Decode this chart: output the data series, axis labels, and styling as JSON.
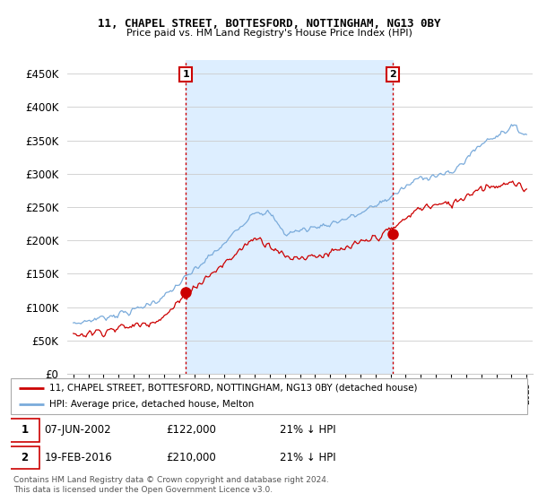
{
  "title1": "11, CHAPEL STREET, BOTTESFORD, NOTTINGHAM, NG13 0BY",
  "title2": "Price paid vs. HM Land Registry's House Price Index (HPI)",
  "legend_line1": "11, CHAPEL STREET, BOTTESFORD, NOTTINGHAM, NG13 0BY (detached house)",
  "legend_line2": "HPI: Average price, detached house, Melton",
  "annotation1": {
    "num": "1",
    "date": "07-JUN-2002",
    "price": "£122,000",
    "pct": "21% ↓ HPI"
  },
  "annotation2": {
    "num": "2",
    "date": "19-FEB-2016",
    "price": "£210,000",
    "pct": "21% ↓ HPI"
  },
  "footnote1": "Contains HM Land Registry data © Crown copyright and database right 2024.",
  "footnote2": "This data is licensed under the Open Government Licence v3.0.",
  "red_color": "#cc0000",
  "blue_color": "#7aabdb",
  "shade_color": "#ddeeff",
  "background_color": "#ffffff",
  "ylim": [
    0,
    470000
  ],
  "yticks": [
    0,
    50000,
    100000,
    150000,
    200000,
    250000,
    300000,
    350000,
    400000,
    450000
  ],
  "marker1_x": 2002.44,
  "marker1_y": 122000,
  "marker2_x": 2016.13,
  "marker2_y": 210000,
  "vline1_x": 2002.44,
  "vline2_x": 2016.13,
  "xlim_left": 1994.6,
  "xlim_right": 2025.4
}
